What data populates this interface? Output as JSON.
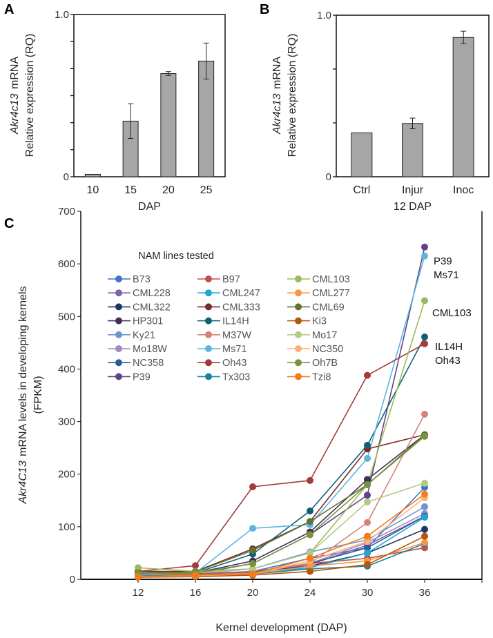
{
  "chart_data": [
    {
      "panel": "A",
      "type": "bar",
      "categories": [
        "10",
        "15",
        "20",
        "25"
      ],
      "values": [
        0.015,
        0.343,
        0.636,
        0.713
      ],
      "errors": [
        0.004,
        0.107,
        0.012,
        0.111
      ],
      "xlabel": "DAP",
      "ylabel_gene": "Akr4c13",
      "ylabel_line1_rest": " mRNA",
      "ylabel_line2": "Relative expression (RQ)",
      "ylim": [
        0,
        1.0
      ],
      "ytick_labels": [
        "0",
        "1.0"
      ],
      "bar_color": "#a6a6a6"
    },
    {
      "panel": "B",
      "type": "bar",
      "categories": [
        "Ctrl",
        "Injur",
        "Inoc"
      ],
      "values": [
        0.272,
        0.33,
        0.862
      ],
      "errors": [
        0.003,
        0.033,
        0.039
      ],
      "xlabel": "12 DAP",
      "ylabel_gene": "Akr4c13",
      "ylabel_line1_rest": " mRNA",
      "ylabel_line2": "Relative expression (RQ)",
      "ylim": [
        0,
        1.0
      ],
      "ytick_labels": [
        "0",
        "1.0"
      ],
      "bar_color": "#a6a6a6"
    },
    {
      "panel": "C",
      "type": "line",
      "x": [
        "12",
        "16",
        "20",
        "24",
        "30",
        "36"
      ],
      "ylim": [
        0,
        700
      ],
      "yticks": [
        0,
        100,
        200,
        300,
        400,
        500,
        600,
        700
      ],
      "xlabel": "Kernel development (DAP)",
      "ylabel_gene": "Akr4C13",
      "ylabel_line1_rest": " mRNA levels in developing kernels",
      "ylabel_line2": "(FPKM)",
      "legend_title": "NAM lines tested",
      "legend_placement": "top-left",
      "end_labels": [
        "P39",
        "Ms71",
        "CML103",
        "IL14H",
        "Oh43"
      ],
      "series": [
        {
          "name": "B73",
          "color": "#4472c4",
          "values": [
            8,
            10,
            15,
            40,
            60,
            175
          ]
        },
        {
          "name": "CML228",
          "color": "#8064a2",
          "values": [
            6,
            8,
            14,
            28,
            65,
            120
          ]
        },
        {
          "name": "CML322",
          "color": "#1f3864",
          "values": [
            7,
            9,
            15,
            25,
            50,
            95
          ]
        },
        {
          "name": "HP301",
          "color": "#3f2d5c",
          "values": [
            10,
            12,
            35,
            90,
            190,
            275
          ]
        },
        {
          "name": "Ky21",
          "color": "#6f96d1",
          "values": [
            8,
            10,
            20,
            52,
            75,
            138
          ]
        },
        {
          "name": "Mo18W",
          "color": "#9c8ac2",
          "values": [
            6,
            9,
            15,
            30,
            70,
            125
          ]
        },
        {
          "name": "NC358",
          "color": "#2e5a9a",
          "values": [
            6,
            9,
            14,
            30,
            60,
            120
          ]
        },
        {
          "name": "P39",
          "color": "#5c4587",
          "values": [
            8,
            10,
            30,
            85,
            160,
            632
          ]
        },
        {
          "name": "B97",
          "color": "#c0504d",
          "values": [
            8,
            10,
            14,
            30,
            40,
            60
          ]
        },
        {
          "name": "CML247",
          "color": "#1ea7d2",
          "values": [
            5,
            8,
            12,
            22,
            50,
            118
          ]
        },
        {
          "name": "CML333",
          "color": "#7b2c2a",
          "values": [
            15,
            15,
            58,
            110,
            248,
            275
          ]
        },
        {
          "name": "IL14H",
          "color": "#0e5f78",
          "values": [
            10,
            12,
            48,
            130,
            255,
            461
          ]
        },
        {
          "name": "M37W",
          "color": "#d9807e",
          "values": [
            5,
            8,
            12,
            30,
            108,
            314
          ]
        },
        {
          "name": "Ms71",
          "color": "#5bb6dd",
          "values": [
            8,
            12,
            97,
            104,
            230,
            615
          ]
        },
        {
          "name": "Oh43",
          "color": "#a33b39",
          "values": [
            15,
            26,
            176,
            188,
            388,
            448
          ]
        },
        {
          "name": "Tx303",
          "color": "#18839f",
          "values": [
            4,
            6,
            10,
            20,
            25,
            68
          ]
        },
        {
          "name": "CML103",
          "color": "#9bbb59",
          "values": [
            22,
            15,
            20,
            50,
            180,
            530
          ]
        },
        {
          "name": "CML277",
          "color": "#f79646",
          "values": [
            4,
            6,
            10,
            25,
            35,
            70
          ]
        },
        {
          "name": "CML69",
          "color": "#5f7530",
          "values": [
            12,
            14,
            55,
            110,
            180,
            275
          ]
        },
        {
          "name": "Ki3",
          "color": "#b65708",
          "values": [
            4,
            5,
            8,
            15,
            28,
            82
          ]
        },
        {
          "name": "Mo17",
          "color": "#b3cc85",
          "values": [
            10,
            12,
            20,
            50,
            147,
            183
          ]
        },
        {
          "name": "NC350",
          "color": "#fab07a",
          "values": [
            5,
            7,
            10,
            35,
            72,
            155
          ]
        },
        {
          "name": "Oh7B",
          "color": "#77933c",
          "values": [
            10,
            12,
            30,
            85,
            180,
            272
          ]
        },
        {
          "name": "Tzi8",
          "color": "#f37c16",
          "values": [
            5,
            8,
            10,
            40,
            82,
            162
          ]
        }
      ]
    }
  ]
}
